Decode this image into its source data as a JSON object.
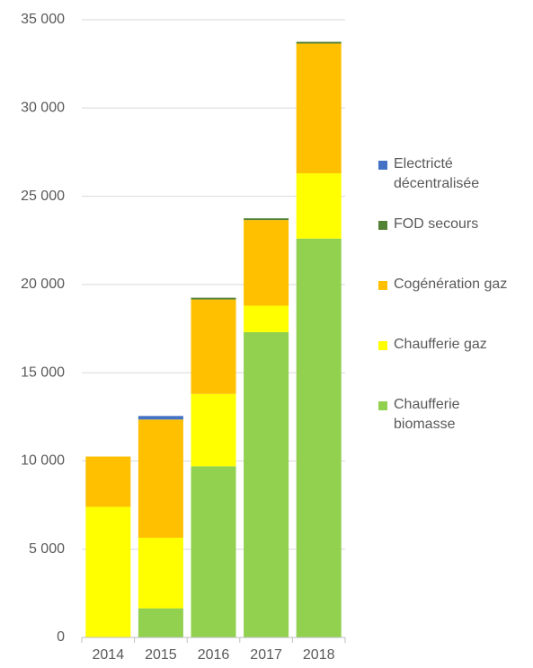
{
  "chart_data": {
    "type": "stacked_bar",
    "categories": [
      "2014",
      "2015",
      "2016",
      "2017",
      "2018"
    ],
    "series": [
      {
        "name": "Chaufferie biomasse",
        "color": "#92d050",
        "values": [
          0,
          1650,
          9700,
          17300,
          22600
        ]
      },
      {
        "name": "Chaufferie gaz",
        "color": "#ffff00",
        "values": [
          7400,
          4000,
          4100,
          1500,
          3700
        ]
      },
      {
        "name": "Cogénération gaz",
        "color": "#ffc000",
        "values": [
          2850,
          6700,
          5350,
          4850,
          7350
        ]
      },
      {
        "name": "FOD secours",
        "color": "#548235",
        "values": [
          0,
          0,
          100,
          100,
          100
        ]
      },
      {
        "name": "Electricté décentralisée",
        "color": "#4472c4",
        "values": [
          0,
          200,
          0,
          0,
          0
        ]
      }
    ],
    "ylim": [
      0,
      35000
    ],
    "yticks": [
      0,
      {
        "value": 5000,
        "label": "5 000"
      },
      {
        "value": 10000,
        "label": "10 000"
      },
      {
        "value": 15000,
        "label": "15 000"
      },
      {
        "value": 20000,
        "label": "20 000"
      },
      {
        "value": 25000,
        "label": "25 000"
      },
      {
        "value": 30000,
        "label": "30 000"
      },
      {
        "value": 35000,
        "label": "35 000"
      }
    ],
    "grid": true,
    "legend": "right"
  }
}
